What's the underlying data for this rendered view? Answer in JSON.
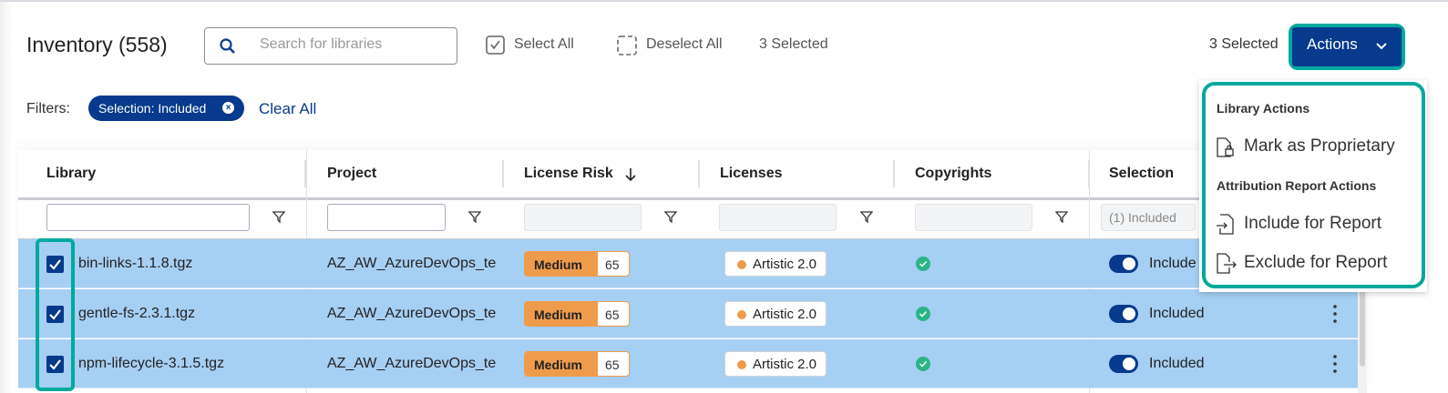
{
  "header": {
    "title": "Inventory (558)",
    "search_placeholder": "Search for libraries",
    "select_all": "Select All",
    "deselect_all": "Deselect All",
    "selected_count": "3 Selected",
    "selected_count_right": "3 Selected",
    "actions_label": "Actions"
  },
  "filters": {
    "label": "Filters:",
    "chips": [
      "Selection: Included"
    ],
    "clear_all": "Clear All"
  },
  "table": {
    "columns": [
      "Library",
      "Project",
      "License Risk",
      "Licenses",
      "Copyrights",
      "Selection"
    ],
    "sort": {
      "column": "License Risk",
      "direction": "descending"
    },
    "selection_filter_value": "(1) Included",
    "rows": [
      {
        "checked": true,
        "library": "bin-links-1.1.8.tgz",
        "project": "AZ_AW_AzureDevOps_te",
        "risk": "Medium",
        "score": "65",
        "license": "Artistic 2.0",
        "copyright": true,
        "selection": "Included"
      },
      {
        "checked": true,
        "library": "gentle-fs-2.3.1.tgz",
        "project": "AZ_AW_AzureDevOps_te",
        "risk": "Medium",
        "score": "65",
        "license": "Artistic 2.0",
        "copyright": true,
        "selection": "Included"
      },
      {
        "checked": true,
        "library": "npm-lifecycle-3.1.5.tgz",
        "project": "AZ_AW_AzureDevOps_te",
        "risk": "Medium",
        "score": "65",
        "license": "Artistic 2.0",
        "copyright": true,
        "selection": "Included"
      }
    ]
  },
  "menu": {
    "library_actions_title": "Library Actions",
    "mark_proprietary": "Mark as Proprietary",
    "attribution_title": "Attribution Report Actions",
    "include": "Include for Report",
    "exclude": "Exclude for Report"
  },
  "colors": {
    "primary": "#063a8c",
    "highlight": "#00a99d",
    "row_selected": "#a6cff4",
    "risk_medium": "#ef9b4c",
    "ok": "#2bb585"
  }
}
